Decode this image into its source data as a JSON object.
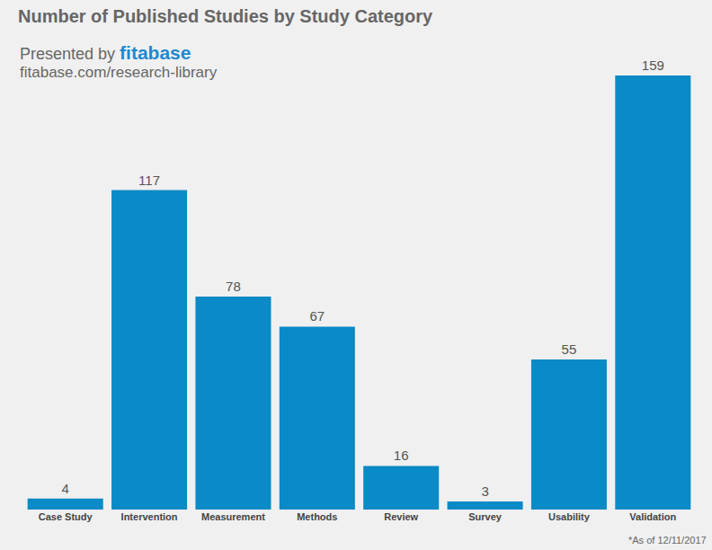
{
  "chart_data": {
    "type": "bar",
    "title": "Number of Published Studies by Study Category",
    "subtitle": "Presented by fitabase",
    "annotations": [
      "fitabase.com/research-library",
      "*As of 12/11/2017"
    ],
    "categories": [
      "Case Study",
      "Intervention",
      "Measurement",
      "Methods",
      "Review",
      "Survey",
      "Usability",
      "Validation"
    ],
    "values": [
      4,
      117,
      78,
      67,
      16,
      3,
      55,
      159
    ],
    "color": "#0a8ac6",
    "ylim": [
      0,
      159
    ],
    "grid": false,
    "data_labels": true,
    "tick_labels": "x"
  }
}
